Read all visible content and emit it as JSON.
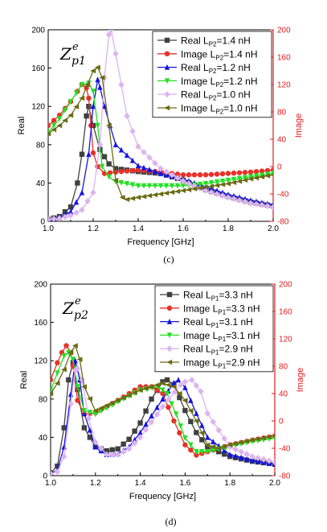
{
  "colors": {
    "axis": "#000000",
    "right_axis": "#e41a1c",
    "series": [
      "#404040",
      "#e8312a",
      "#1414e0",
      "#22e022",
      "#dcb4f0",
      "#6b6b14"
    ]
  },
  "chart_data": [
    {
      "type": "line",
      "caption": "(c)",
      "title_main": "Z",
      "title_sub": "p1",
      "title_sup": "e",
      "xlabel": "Frequency [GHz]",
      "ylabel": "Real",
      "y2label": "Image",
      "xlim": [
        1.0,
        2.0
      ],
      "ylim": [
        0,
        200
      ],
      "y2lim": [
        -80,
        200
      ],
      "xticks": [
        "1.0",
        "1.2",
        "1.4",
        "1.6",
        "1.8",
        "2.0"
      ],
      "yticks": [
        "0",
        "40",
        "80",
        "120",
        "160",
        "200"
      ],
      "y2ticks": [
        "-80",
        "-40",
        "0",
        "40",
        "80",
        "120",
        "160",
        "200"
      ],
      "legend_position": "top-right",
      "series": [
        {
          "name_main": "Real L",
          "name_sub": "P2",
          "name_rest": "=1.4 nH",
          "marker": "square",
          "axis": "left",
          "x": [
            1.0,
            1.05,
            1.1,
            1.13,
            1.15,
            1.17,
            1.18,
            1.2,
            1.23,
            1.27,
            1.3,
            1.4,
            1.5,
            1.6,
            1.7,
            1.8,
            1.9,
            2.0
          ],
          "y": [
            2,
            5,
            15,
            40,
            70,
            110,
            120,
            100,
            75,
            60,
            55,
            52,
            50,
            43,
            33,
            26,
            20,
            16
          ]
        },
        {
          "name_main": "Image L",
          "name_sub": "P2",
          "name_rest": "=1.4 nH",
          "marker": "circle",
          "axis": "right",
          "x": [
            1.0,
            1.05,
            1.1,
            1.13,
            1.15,
            1.17,
            1.18,
            1.19,
            1.2,
            1.22,
            1.25,
            1.3,
            1.4,
            1.5,
            1.6,
            1.7,
            1.8,
            1.9,
            2.0
          ],
          "y": [
            60,
            75,
            95,
            110,
            120,
            115,
            100,
            60,
            20,
            0,
            -10,
            -8,
            -5,
            -8,
            -12,
            -12,
            -10,
            -8,
            -5
          ]
        },
        {
          "name_main": "Real L",
          "name_sub": "P2",
          "name_rest": "=1.2 nH",
          "marker": "triangle",
          "axis": "left",
          "x": [
            1.0,
            1.05,
            1.1,
            1.15,
            1.18,
            1.2,
            1.22,
            1.23,
            1.25,
            1.3,
            1.4,
            1.5,
            1.6,
            1.7,
            1.8,
            1.9,
            2.0
          ],
          "y": [
            2,
            4,
            10,
            30,
            70,
            120,
            148,
            140,
            120,
            80,
            58,
            50,
            44,
            36,
            28,
            22,
            17
          ]
        },
        {
          "name_main": "Image L",
          "name_sub": "P2",
          "name_rest": "=1.2 nH",
          "marker": "triangle-down",
          "axis": "right",
          "x": [
            1.0,
            1.05,
            1.1,
            1.15,
            1.18,
            1.2,
            1.22,
            1.24,
            1.27,
            1.3,
            1.4,
            1.5,
            1.6,
            1.7,
            1.8,
            1.9,
            2.0
          ],
          "y": [
            50,
            70,
            95,
            120,
            122,
            110,
            60,
            0,
            -15,
            -22,
            -28,
            -28,
            -28,
            -25,
            -20,
            -15,
            -10
          ]
        },
        {
          "name_main": "Real L",
          "name_sub": "P2",
          "name_rest": "=1.0 nH",
          "marker": "diamond",
          "axis": "left",
          "x": [
            1.0,
            1.05,
            1.1,
            1.15,
            1.2,
            1.23,
            1.25,
            1.27,
            1.28,
            1.3,
            1.35,
            1.4,
            1.5,
            1.6,
            1.7,
            1.8,
            1.9,
            2.0
          ],
          "y": [
            2,
            3,
            6,
            12,
            30,
            80,
            150,
            195,
            200,
            175,
            110,
            78,
            55,
            42,
            32,
            25,
            19,
            15
          ]
        },
        {
          "name_main": "Image L",
          "name_sub": "P2",
          "name_rest": "=1.0 nH",
          "marker": "triangle-left",
          "axis": "right",
          "x": [
            1.0,
            1.05,
            1.1,
            1.15,
            1.2,
            1.22,
            1.24,
            1.27,
            1.3,
            1.33,
            1.35,
            1.4,
            1.5,
            1.6,
            1.7,
            1.8,
            1.9,
            2.0
          ],
          "y": [
            48,
            60,
            75,
            100,
            140,
            145,
            130,
            60,
            -20,
            -45,
            -48,
            -45,
            -40,
            -35,
            -30,
            -25,
            -18,
            -12
          ]
        }
      ]
    },
    {
      "type": "line",
      "caption": "(d)",
      "title_main": "Z",
      "title_sub": "p2",
      "title_sup": "e",
      "xlabel": "Frequency [GHz]",
      "ylabel": "Real",
      "y2label": "Image",
      "xlim": [
        1.0,
        2.0
      ],
      "ylim": [
        0,
        200
      ],
      "y2lim": [
        -80,
        200
      ],
      "xticks": [
        "1.0",
        "1.2",
        "1.4",
        "1.6",
        "1.8",
        "2.0"
      ],
      "yticks": [
        "0",
        "40",
        "80",
        "120",
        "160",
        "200"
      ],
      "y2ticks": [
        "-80",
        "-40",
        "0",
        "40",
        "80",
        "120",
        "160",
        "200"
      ],
      "legend_position": "top-right",
      "series": [
        {
          "name_main": "Real L",
          "name_sub": "P1",
          "name_rest": "=3.3 nH",
          "marker": "square",
          "axis": "left",
          "x": [
            1.0,
            1.03,
            1.06,
            1.08,
            1.1,
            1.12,
            1.15,
            1.2,
            1.25,
            1.3,
            1.35,
            1.4,
            1.45,
            1.5,
            1.52,
            1.55,
            1.6,
            1.65,
            1.7,
            1.8,
            1.9,
            2.0
          ],
          "y": [
            3,
            10,
            50,
            100,
            118,
            90,
            50,
            30,
            26,
            28,
            38,
            55,
            80,
            98,
            100,
            95,
            68,
            45,
            30,
            20,
            15,
            12
          ]
        },
        {
          "name_main": "Image L",
          "name_sub": "P1",
          "name_rest": "=3.3 nH",
          "marker": "circle",
          "axis": "right",
          "x": [
            1.0,
            1.03,
            1.05,
            1.07,
            1.09,
            1.1,
            1.12,
            1.15,
            1.2,
            1.3,
            1.4,
            1.45,
            1.5,
            1.55,
            1.6,
            1.65,
            1.7,
            1.8,
            1.9,
            2.0
          ],
          "y": [
            60,
            85,
            100,
            110,
            100,
            80,
            30,
            10,
            12,
            30,
            50,
            50,
            40,
            0,
            -35,
            -50,
            -45,
            -35,
            -28,
            -22
          ]
        },
        {
          "name_main": "Real L",
          "name_sub": "P1",
          "name_rest": "=3.1 nH",
          "marker": "triangle",
          "axis": "left",
          "x": [
            1.0,
            1.03,
            1.06,
            1.09,
            1.11,
            1.13,
            1.15,
            1.2,
            1.25,
            1.3,
            1.35,
            1.4,
            1.5,
            1.55,
            1.57,
            1.6,
            1.65,
            1.7,
            1.8,
            1.9,
            2.0
          ],
          "y": [
            2,
            6,
            30,
            85,
            120,
            100,
            65,
            30,
            22,
            23,
            30,
            45,
            80,
            97,
            100,
            92,
            65,
            40,
            22,
            16,
            12
          ]
        },
        {
          "name_main": "Image L",
          "name_sub": "P1",
          "name_rest": "=3.1 nH",
          "marker": "triangle-down",
          "axis": "right",
          "x": [
            1.0,
            1.03,
            1.06,
            1.08,
            1.1,
            1.12,
            1.15,
            1.2,
            1.3,
            1.4,
            1.48,
            1.52,
            1.56,
            1.6,
            1.65,
            1.7,
            1.8,
            1.9,
            2.0
          ],
          "y": [
            45,
            70,
            95,
            100,
            90,
            50,
            15,
            10,
            28,
            45,
            50,
            40,
            10,
            -25,
            -45,
            -45,
            -37,
            -30,
            -25
          ]
        },
        {
          "name_main": "Real L",
          "name_sub": "P1",
          "name_rest": "=2.9 nH",
          "marker": "diamond",
          "axis": "left",
          "x": [
            1.0,
            1.03,
            1.06,
            1.09,
            1.11,
            1.12,
            1.14,
            1.17,
            1.2,
            1.25,
            1.3,
            1.35,
            1.4,
            1.5,
            1.58,
            1.6,
            1.63,
            1.67,
            1.7,
            1.8,
            1.9,
            2.0
          ],
          "y": [
            2,
            4,
            20,
            75,
            110,
            112,
            100,
            60,
            35,
            22,
            22,
            28,
            40,
            72,
            95,
            98,
            100,
            88,
            65,
            30,
            20,
            14
          ]
        },
        {
          "name_main": "Image L",
          "name_sub": "P1",
          "name_rest": "=2.9 nH",
          "marker": "triangle-left",
          "axis": "right",
          "x": [
            1.0,
            1.03,
            1.06,
            1.09,
            1.11,
            1.13,
            1.15,
            1.2,
            1.3,
            1.4,
            1.5,
            1.55,
            1.6,
            1.65,
            1.7,
            1.75,
            1.8,
            1.9,
            2.0
          ],
          "y": [
            40,
            55,
            75,
            100,
            110,
            90,
            50,
            15,
            30,
            45,
            55,
            50,
            30,
            0,
            -35,
            -40,
            -35,
            -28,
            -22
          ]
        }
      ]
    }
  ]
}
